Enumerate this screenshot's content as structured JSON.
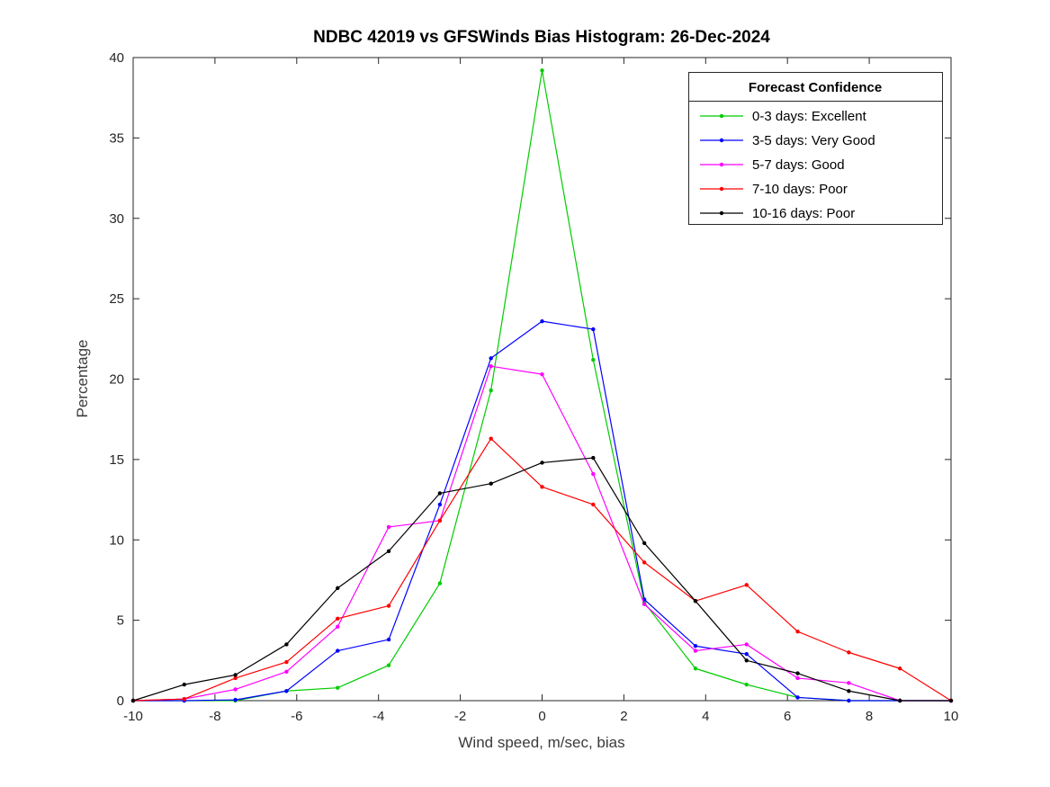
{
  "figure": {
    "background": "#ffffff",
    "axis_color": "#262626"
  },
  "chart_data": {
    "type": "line",
    "title": "NDBC 42019 vs GFSWinds Bias Histogram: 26-Dec-2024",
    "xlabel": "Wind speed, m/sec, bias",
    "ylabel": "Percentage",
    "xlim": [
      -10,
      10
    ],
    "ylim": [
      0,
      40
    ],
    "xticks": [
      -10,
      -8,
      -6,
      -4,
      -2,
      0,
      2,
      4,
      6,
      8,
      10
    ],
    "yticks": [
      0,
      5,
      10,
      15,
      20,
      25,
      30,
      35,
      40
    ],
    "grid": false,
    "marker": "point",
    "legend": {
      "title": "Forecast Confidence",
      "position": "top-right"
    },
    "x": [
      -10,
      -8.75,
      -7.5,
      -6.25,
      -5,
      -3.75,
      -2.5,
      -1.25,
      0,
      1.25,
      2.5,
      3.75,
      5,
      6.25,
      7.5,
      8.75,
      10
    ],
    "series": [
      {
        "name": "0-3 days: Excellent",
        "color": "#00cc00",
        "values": [
          0,
          0,
          0,
          0.6,
          0.8,
          2.2,
          7.3,
          19.3,
          39.2,
          21.2,
          6.1,
          2.0,
          1.0,
          0.2,
          0,
          0,
          0
        ]
      },
      {
        "name": "3-5 days: Very Good",
        "color": "#0000ff",
        "values": [
          0,
          0,
          0.05,
          0.6,
          3.1,
          3.8,
          12.2,
          21.3,
          23.6,
          23.1,
          6.3,
          3.4,
          2.9,
          0.2,
          0,
          0,
          0
        ]
      },
      {
        "name": "5-7 days: Good",
        "color": "#ff00ff",
        "values": [
          0,
          0.1,
          0.7,
          1.8,
          4.6,
          10.8,
          11.2,
          20.8,
          20.3,
          14.1,
          6.0,
          3.1,
          3.5,
          1.4,
          1.1,
          0,
          0
        ]
      },
      {
        "name": "7-10 days: Poor",
        "color": "#ff0000",
        "values": [
          0,
          0.1,
          1.4,
          2.4,
          5.1,
          5.9,
          11.2,
          16.3,
          13.3,
          12.2,
          8.6,
          6.2,
          7.2,
          4.3,
          3.0,
          2.0,
          0
        ]
      },
      {
        "name": "10-16 days: Poor",
        "color": "#000000",
        "values": [
          0,
          1.0,
          1.6,
          3.5,
          7.0,
          9.3,
          12.9,
          13.5,
          14.8,
          15.1,
          9.8,
          6.2,
          2.5,
          1.7,
          0.6,
          0,
          0
        ]
      }
    ]
  }
}
